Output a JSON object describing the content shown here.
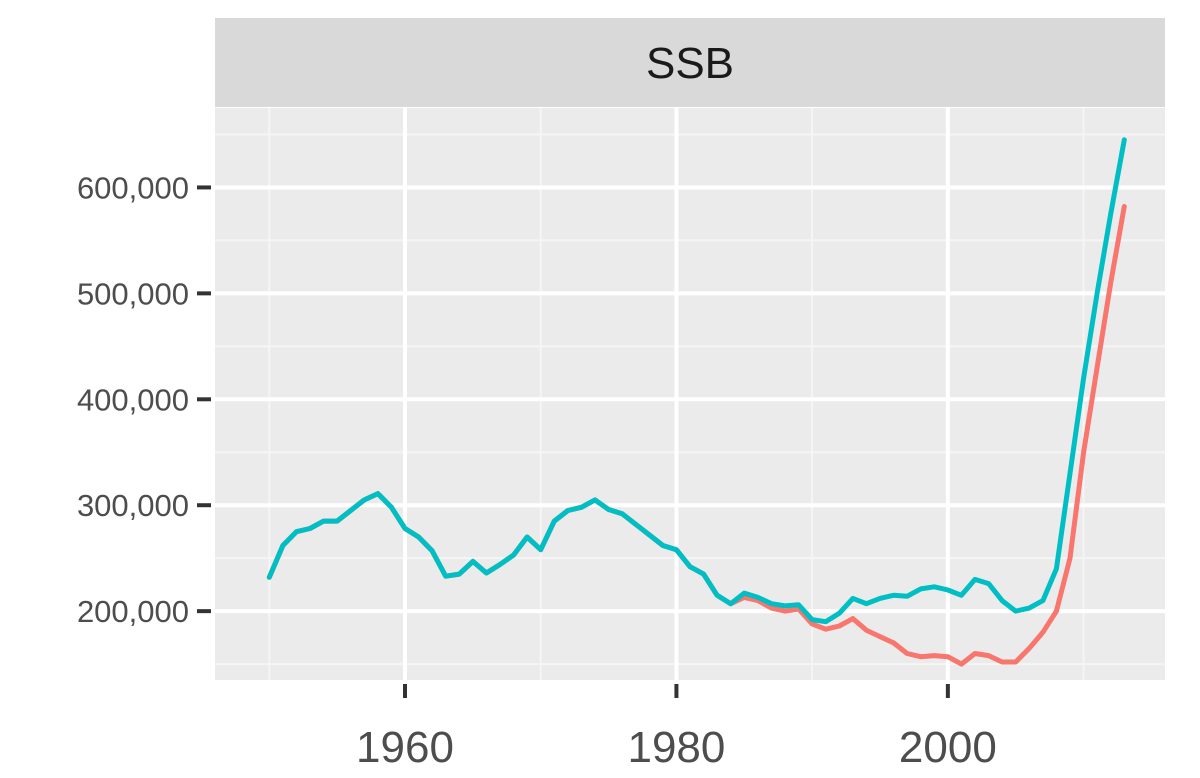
{
  "chart_data": {
    "type": "line",
    "facet_title": "SSB",
    "xlim": [
      1946,
      2016
    ],
    "ylim": [
      135000,
      675000
    ],
    "x_ticks": [
      1960,
      1980,
      2000
    ],
    "x_tick_labels": [
      "1960",
      "1980",
      "2000"
    ],
    "y_ticks": [
      200000,
      300000,
      400000,
      500000,
      600000
    ],
    "y_tick_labels": [
      "200,000",
      "300,000",
      "400,000",
      "500,000",
      "600,000"
    ],
    "grid": true,
    "panel_background": "#ebebeb",
    "strip_background": "#d9d9d9",
    "series": [
      {
        "color": "#f8766d",
        "x": [
          1950,
          1951,
          1952,
          1953,
          1954,
          1955,
          1956,
          1957,
          1958,
          1959,
          1960,
          1961,
          1962,
          1963,
          1964,
          1965,
          1966,
          1967,
          1968,
          1969,
          1970,
          1971,
          1972,
          1973,
          1974,
          1975,
          1976,
          1977,
          1978,
          1979,
          1980,
          1981,
          1982,
          1983,
          1984,
          1985,
          1986,
          1987,
          1988,
          1989,
          1990,
          1991,
          1992,
          1993,
          1994,
          1995,
          1996,
          1997,
          1998,
          1999,
          2000,
          2001,
          2002,
          2003,
          2004,
          2005,
          2006,
          2007,
          2008,
          2009,
          2010,
          2011,
          2012,
          2013
        ],
        "y": [
          232000,
          262000,
          275000,
          278000,
          285000,
          285000,
          295000,
          305000,
          311000,
          298000,
          278000,
          270000,
          257000,
          233000,
          235000,
          247000,
          236000,
          244000,
          253000,
          270000,
          258000,
          285000,
          295000,
          298000,
          305000,
          296000,
          292000,
          282000,
          272000,
          262000,
          258000,
          242000,
          235000,
          215000,
          207000,
          213000,
          210000,
          203000,
          200000,
          202000,
          188000,
          183000,
          186000,
          193000,
          182000,
          176000,
          170000,
          160000,
          157000,
          158000,
          157000,
          150000,
          160000,
          158000,
          152000,
          152000,
          165000,
          180000,
          200000,
          250000,
          350000,
          430000,
          510000,
          582000
        ]
      },
      {
        "color": "#00bfc4",
        "x": [
          1950,
          1951,
          1952,
          1953,
          1954,
          1955,
          1956,
          1957,
          1958,
          1959,
          1960,
          1961,
          1962,
          1963,
          1964,
          1965,
          1966,
          1967,
          1968,
          1969,
          1970,
          1971,
          1972,
          1973,
          1974,
          1975,
          1976,
          1977,
          1978,
          1979,
          1980,
          1981,
          1982,
          1983,
          1984,
          1985,
          1986,
          1987,
          1988,
          1989,
          1990,
          1991,
          1992,
          1993,
          1994,
          1995,
          1996,
          1997,
          1998,
          1999,
          2000,
          2001,
          2002,
          2003,
          2004,
          2005,
          2006,
          2007,
          2008,
          2009,
          2010,
          2011,
          2012,
          2013
        ],
        "y": [
          232000,
          262000,
          275000,
          278000,
          285000,
          285000,
          295000,
          305000,
          311000,
          298000,
          278000,
          270000,
          257000,
          233000,
          235000,
          247000,
          236000,
          244000,
          253000,
          270000,
          258000,
          285000,
          295000,
          298000,
          305000,
          296000,
          292000,
          282000,
          272000,
          262000,
          258000,
          242000,
          235000,
          215000,
          207000,
          217000,
          213000,
          207000,
          205000,
          206000,
          192000,
          190000,
          198000,
          212000,
          207000,
          212000,
          215000,
          214000,
          221000,
          223000,
          220000,
          215000,
          230000,
          226000,
          210000,
          200000,
          203000,
          210000,
          240000,
          330000,
          420000,
          500000,
          575000,
          645000
        ]
      }
    ]
  }
}
